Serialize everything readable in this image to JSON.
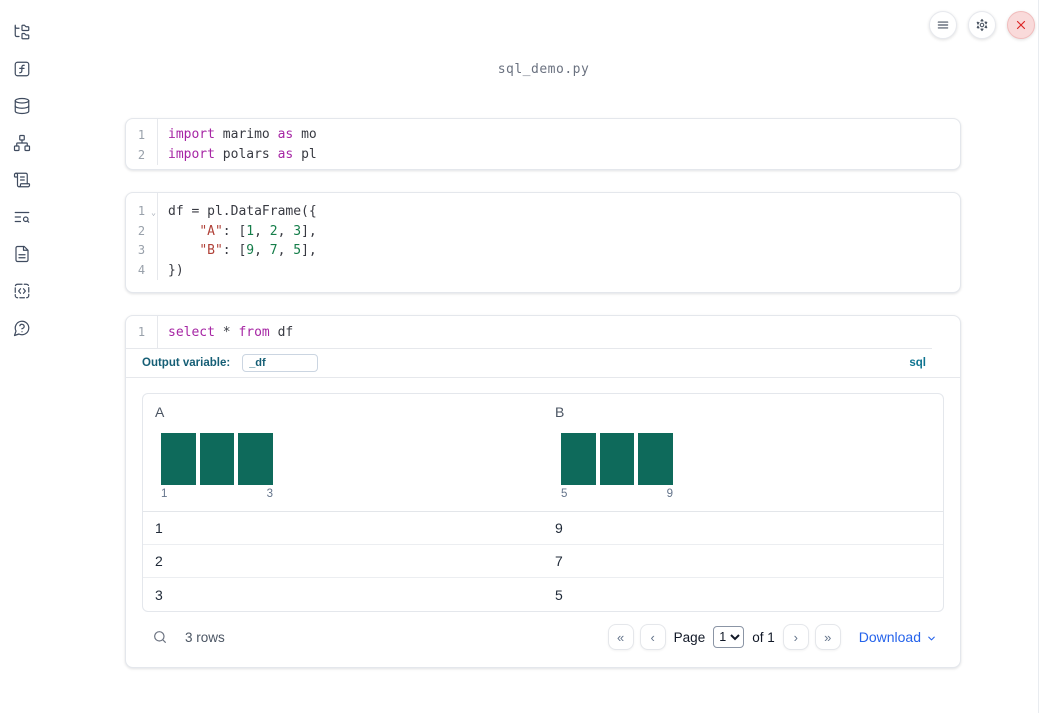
{
  "app": {
    "filename": "sql_demo.py"
  },
  "topbar": {
    "buttons": [
      "menu-icon",
      "settings-gear-icon",
      "shutdown-x-icon"
    ]
  },
  "sidebar": {
    "icons": [
      "file-tree-icon",
      "function-square-icon",
      "database-icon",
      "dependency-graph-icon",
      "scroll-logs-icon",
      "text-search-icon",
      "document-icon",
      "code-snippets-icon",
      "help-chat-icon"
    ]
  },
  "cells": [
    {
      "lines": [
        {
          "n": "1",
          "tokens": [
            [
              "kw",
              "import"
            ],
            [
              "pl",
              " marimo "
            ],
            [
              "kw",
              "as"
            ],
            [
              "pl",
              " mo"
            ]
          ]
        },
        {
          "n": "2",
          "tokens": [
            [
              "kw",
              "import"
            ],
            [
              "pl",
              " polars "
            ],
            [
              "kw",
              "as"
            ],
            [
              "pl",
              " pl"
            ]
          ]
        }
      ]
    },
    {
      "lines": [
        {
          "n": "1",
          "fold": true,
          "tokens": [
            [
              "pl",
              "df = pl.DataFrame({"
            ]
          ]
        },
        {
          "n": "2",
          "tokens": [
            [
              "pl",
              "    "
            ],
            [
              "str",
              "\"A\""
            ],
            [
              "pl",
              ": ["
            ],
            [
              "num",
              "1"
            ],
            [
              "pl",
              ", "
            ],
            [
              "num",
              "2"
            ],
            [
              "pl",
              ", "
            ],
            [
              "num",
              "3"
            ],
            [
              "pl",
              "],"
            ]
          ]
        },
        {
          "n": "3",
          "tokens": [
            [
              "pl",
              "    "
            ],
            [
              "str",
              "\"B\""
            ],
            [
              "pl",
              ": ["
            ],
            [
              "num",
              "9"
            ],
            [
              "pl",
              ", "
            ],
            [
              "num",
              "7"
            ],
            [
              "pl",
              ", "
            ],
            [
              "num",
              "5"
            ],
            [
              "pl",
              "],"
            ]
          ]
        },
        {
          "n": "4",
          "tokens": [
            [
              "pl",
              "})"
            ]
          ]
        }
      ]
    },
    {
      "lines": [
        {
          "n": "1",
          "tokens": [
            [
              "kw",
              "select"
            ],
            [
              "pl",
              " * "
            ],
            [
              "kw",
              "from"
            ],
            [
              "pl",
              " df"
            ]
          ]
        }
      ]
    }
  ],
  "sql_cell": {
    "output_variable_label": "Output variable:",
    "output_variable_value": "_df",
    "language_badge": "sql"
  },
  "table": {
    "columns": [
      {
        "name": "A",
        "histogram": {
          "bar_count": 3,
          "values": [
            1,
            2,
            3
          ],
          "min_label": "1",
          "max_label": "3"
        }
      },
      {
        "name": "B",
        "histogram": {
          "bar_count": 3,
          "values": [
            5,
            7,
            9
          ],
          "min_label": "5",
          "max_label": "9"
        }
      }
    ],
    "rows": [
      [
        "1",
        "9"
      ],
      [
        "2",
        "7"
      ],
      [
        "3",
        "5"
      ]
    ],
    "footer": {
      "row_count": "3 rows",
      "page_label": "Page",
      "page_value": "1",
      "of_label": "of 1",
      "download_label": "Download",
      "pager_icons": [
        "first-page-icon",
        "prev-page-icon",
        "next-page-icon",
        "last-page-icon"
      ]
    }
  },
  "colors": {
    "histogram": "#0e6a5b",
    "accent_blue": "#2563eb",
    "badge_teal": "#0e7490",
    "keyword": "#a626a4",
    "string": "#b04138",
    "number": "#147d49"
  }
}
